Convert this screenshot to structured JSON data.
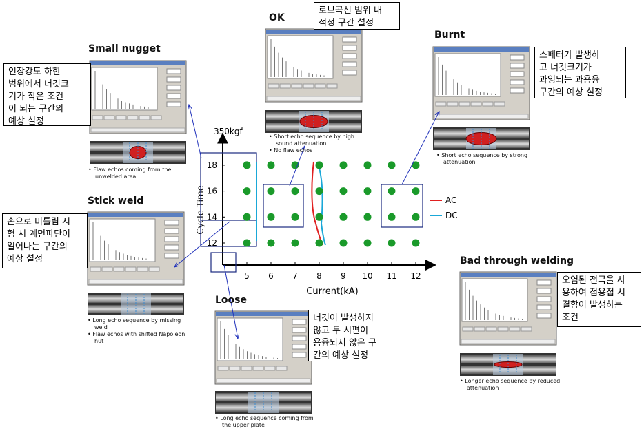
{
  "chart": {
    "top_label": "350kgf",
    "x_label": "Current(kA)",
    "y_label": "Cycle Time",
    "xlim": [
      4,
      12.8
    ],
    "ylim": [
      10.3,
      20.4
    ],
    "xticks": [
      5,
      6,
      7,
      8,
      9,
      10,
      11,
      12
    ],
    "yticks": [
      12,
      14,
      16,
      18
    ],
    "legend": [
      {
        "name": "AC",
        "color": "#e02020"
      },
      {
        "name": "DC",
        "color": "#1aa8d8"
      }
    ],
    "points": {
      "color": "#1a9a2a",
      "x": [
        5,
        6,
        7,
        8,
        9,
        10,
        11,
        12,
        5,
        6,
        7,
        8,
        9,
        10,
        11,
        12,
        5,
        6,
        7,
        8,
        9,
        10,
        11,
        12,
        5,
        6,
        7,
        8,
        9,
        10,
        11,
        12
      ],
      "y": [
        18,
        18,
        18,
        18,
        18,
        18,
        18,
        18,
        16,
        16,
        16,
        16,
        16,
        16,
        16,
        16,
        14,
        14,
        14,
        14,
        14,
        14,
        14,
        14,
        12,
        12,
        12,
        12,
        12,
        12,
        12,
        12
      ]
    }
  },
  "panels": [
    {
      "title": "Small nugget",
      "callout": [
        "인장강도 하한",
        "범위에서 너깃크",
        "기가 작은 조건",
        "이 되는 구간의",
        "예상 설정"
      ],
      "notes": [
        "Flaw echos coming from the unwelded area."
      ]
    },
    {
      "title": "OK",
      "callout": [
        "로브곡선 범위 내",
        "적정 구간 설정"
      ],
      "notes": [
        "Short echo sequence by high sound attenuation",
        "No flaw echos"
      ]
    },
    {
      "title": "Burnt",
      "callout": [
        "스페터가 발생하",
        "고 너깃크기가",
        "과잉되는 과용융",
        "구간의 예상 설정"
      ],
      "notes": [
        "Short echo sequence by strong attenuation"
      ]
    },
    {
      "title": "Stick weld",
      "callout": [
        "손으로 비틀림 시",
        "험 시 계면파단이",
        "일어나는 구간의",
        "예상 설정"
      ],
      "notes": [
        "Long echo sequence by missing weld",
        "Flaw echos with shifted Napoleon hut"
      ]
    },
    {
      "title": "Loose",
      "callout": [
        "너깃이 발생하지",
        "않고 두 시편이",
        "용융되지 않은 구",
        "간의 예상 설정"
      ],
      "notes": [
        "Long echo sequence coming from the upper plate"
      ]
    },
    {
      "title": "Bad through welding",
      "callout": [
        "오염된 전극을 사",
        "용하여 점용접 시",
        "결함이 발생하는",
        "조건"
      ],
      "notes": [
        "Longer echo sequence by reduced attenuation"
      ]
    }
  ]
}
